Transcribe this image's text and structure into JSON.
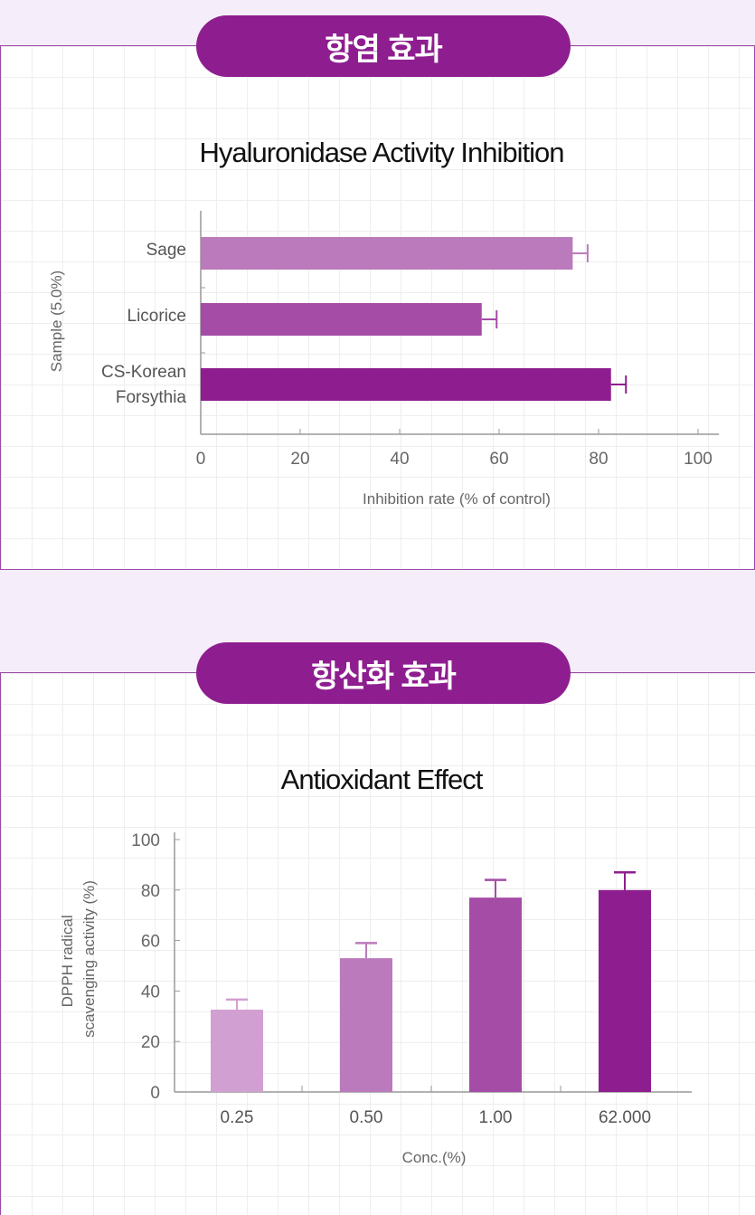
{
  "sections": [
    {
      "heading": "항염 효과"
    },
    {
      "heading": "항산화 효과"
    }
  ],
  "chart_data": [
    {
      "type": "bar",
      "orientation": "horizontal",
      "title": "Hyaluronidase Activity Inhibition",
      "xlabel": "Inhibition rate (% of control)",
      "ylabel": "Sample (5.0%)",
      "categories": [
        "Sage",
        "Licorice",
        "CS-Korean Forsythia"
      ],
      "values": [
        74.8,
        56.5,
        82.5
      ],
      "errors": [
        3,
        3,
        3
      ],
      "colors": [
        "#bb7abb",
        "#a44ca6",
        "#8e1e8f"
      ],
      "xlim": [
        0,
        100
      ],
      "xticks": [
        "0",
        "20",
        "40",
        "60",
        "80",
        "100"
      ],
      "grid": true
    },
    {
      "type": "bar",
      "orientation": "vertical",
      "title": "Antioxidant Effect",
      "xlabel": "Conc.(%)",
      "ylabel": "DPPH radical scavenging activity (%)",
      "categories": [
        "0.25",
        "0.50",
        "1.00",
        "62.000"
      ],
      "values": [
        32.6,
        53,
        77,
        80
      ],
      "errors": [
        4,
        6,
        7,
        7
      ],
      "colors": [
        "#d19fd1",
        "#bb7abb",
        "#a44ca6",
        "#8e1e8f"
      ],
      "ylim": [
        0,
        100
      ],
      "yticks": [
        "0",
        "20",
        "40",
        "60",
        "80",
        "100"
      ],
      "grid": true
    }
  ]
}
